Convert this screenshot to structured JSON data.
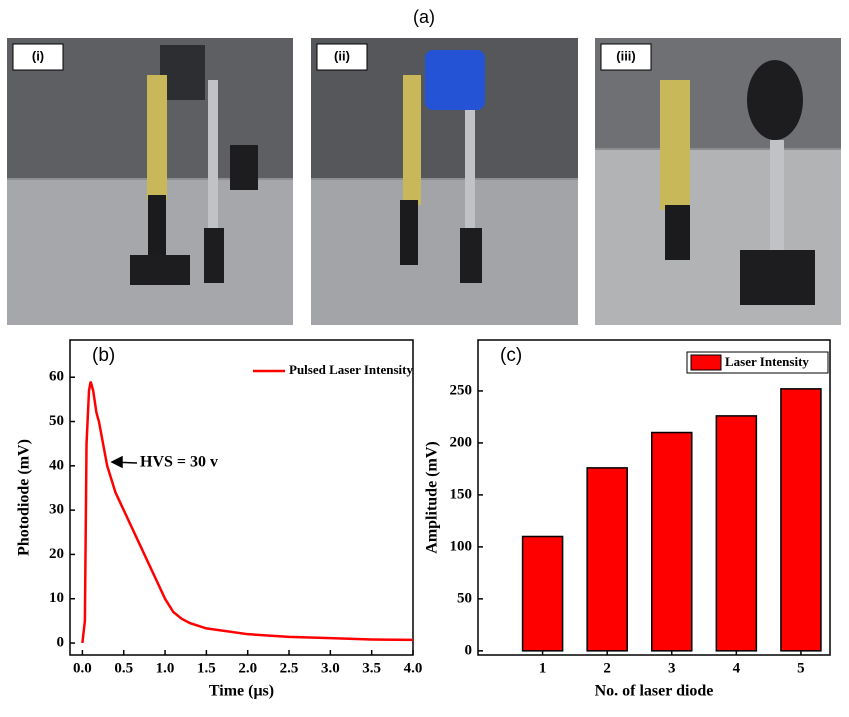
{
  "figure_label": "(a)",
  "photos": [
    {
      "label": "(i)"
    },
    {
      "label": "(ii)"
    },
    {
      "label": "(iii)"
    }
  ],
  "chart_data": [
    {
      "type": "line",
      "panel_label": "(b)",
      "xlabel": "Time (μs)",
      "ylabel": "Photodiode (mV)",
      "annotation": "HVS = 30 v",
      "legend": "upper right",
      "x": [
        0,
        0.03,
        0.05,
        0.08,
        0.1,
        0.13,
        0.17,
        0.2,
        0.25,
        0.3,
        0.35,
        0.4,
        0.5,
        0.6,
        0.7,
        0.8,
        0.9,
        1.0,
        1.1,
        1.2,
        1.3,
        1.5,
        2.0,
        2.5,
        3.0,
        3.5,
        4.0
      ],
      "series": [
        {
          "name": "Pulsed Laser Intensity",
          "color": "#ff0000",
          "values": [
            0,
            5,
            45,
            57,
            59,
            57,
            52,
            50,
            45,
            40,
            37,
            34,
            30,
            26,
            22,
            18,
            14,
            10,
            7,
            5.5,
            4.5,
            3.3,
            2,
            1.4,
            1.1,
            0.8,
            0.7
          ]
        }
      ],
      "xlim": [
        -0.15,
        4.0
      ],
      "xticks": [
        {
          "value": 0,
          "label": "0.0"
        },
        0.5,
        {
          "value": 1,
          "label": "1.0"
        },
        1.5,
        {
          "value": 2,
          "label": "2.0"
        },
        2.5,
        {
          "value": 3,
          "label": "3.0"
        },
        3.5,
        {
          "value": 4,
          "label": "4.0"
        }
      ],
      "ylim": [
        -2.7,
        68.4
      ],
      "yticks": [
        0,
        10,
        20,
        30,
        40,
        50,
        60
      ]
    },
    {
      "type": "bar",
      "panel_label": "(c)",
      "xlabel": "No. of laser diode",
      "ylabel": "Amplitude (mV)",
      "legend": "upper right",
      "x": [
        1,
        2,
        3,
        4,
        5
      ],
      "series": [
        {
          "name": "Laser Intensity",
          "color": "#ff0000",
          "values": [
            110,
            176,
            210,
            226,
            252
          ]
        }
      ],
      "xlim": [
        0,
        5.45
      ],
      "xticks": [
        1,
        2,
        3,
        4,
        5
      ],
      "ylim": [
        -4,
        299
      ],
      "yticks": [
        0,
        50,
        100,
        150,
        200,
        250
      ]
    }
  ]
}
